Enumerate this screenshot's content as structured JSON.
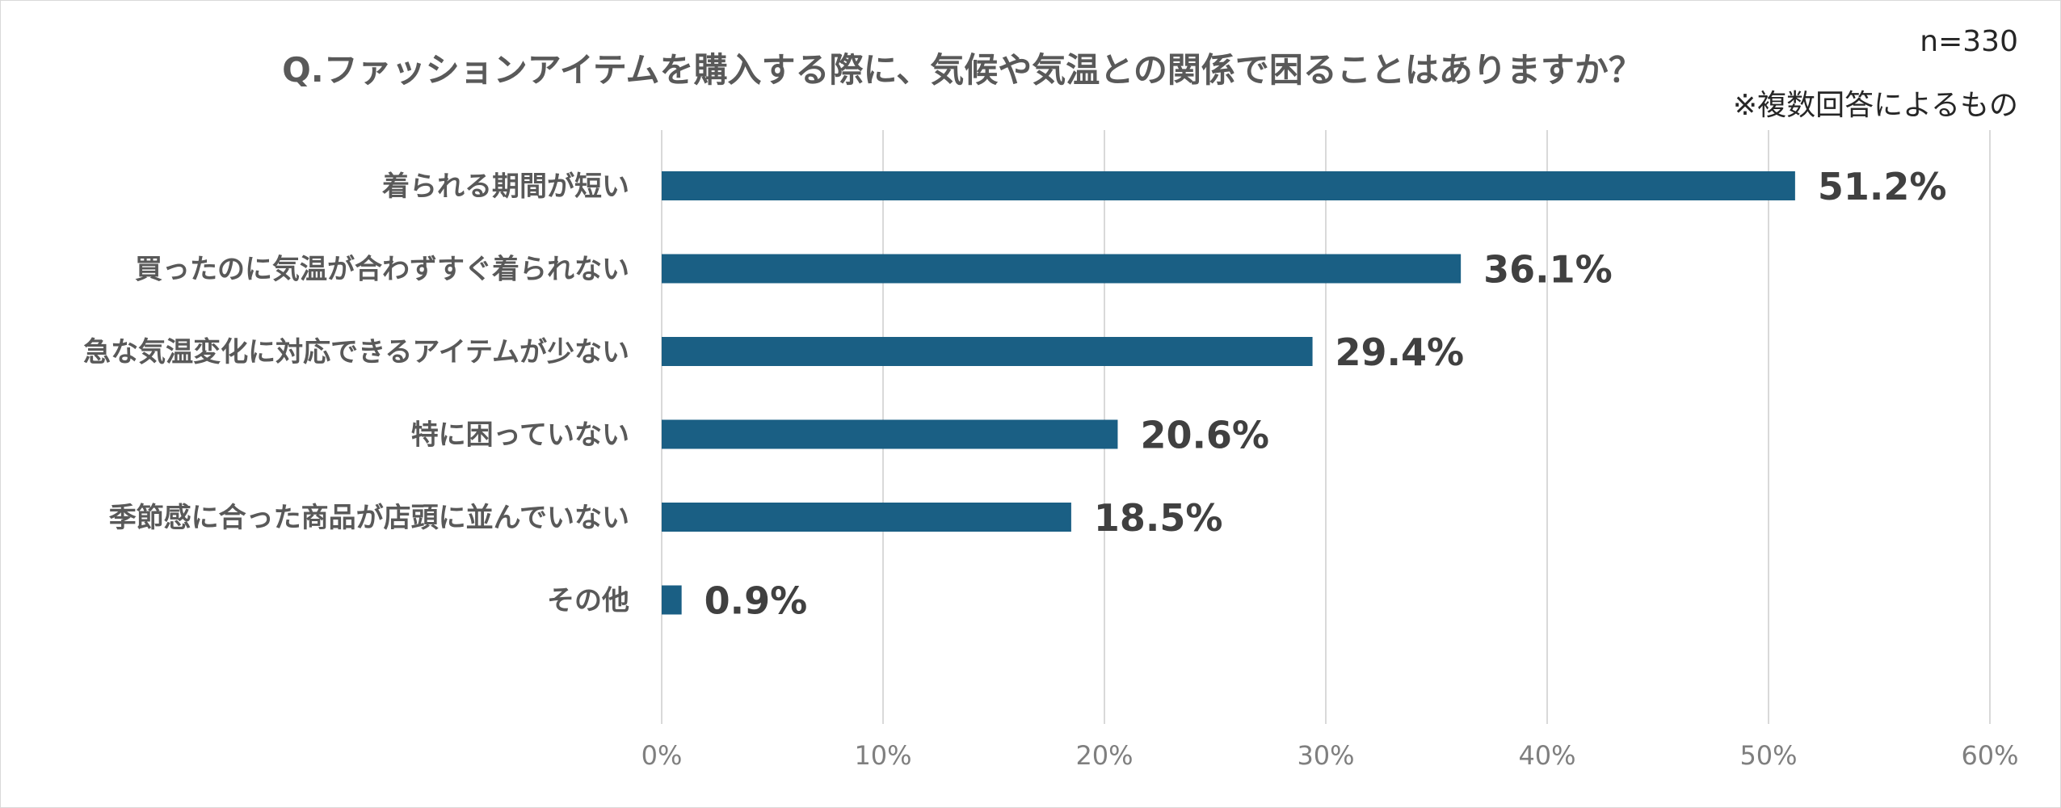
{
  "header": {
    "title": "Q.ファッションアイテムを購入する際に、気候や気温との関係で困ることはありますか？",
    "sample_size": "n=330",
    "note": "※複数回答によるもの"
  },
  "colors": {
    "bar": "#1a5f84",
    "gridline": "#d9d9d9",
    "category_text": "#595959",
    "value_text": "#404040",
    "tick_text": "#7f7f7f"
  },
  "chart_data": {
    "type": "bar",
    "orientation": "horizontal",
    "title": "Q.ファッションアイテムを購入する際に、気候や気温との関係で困ることはありますか？",
    "categories": [
      "着られる期間が短い",
      "買ったのに気温が合わずすぐ着られない",
      "急な気温変化に対応できるアイテムが少ない",
      "特に困っていない",
      "季節感に合った商品が店頭に並んでいない",
      "その他"
    ],
    "values": [
      51.2,
      36.1,
      29.4,
      20.6,
      18.5,
      0.9
    ],
    "value_labels": [
      "51.2%",
      "36.1%",
      "29.4%",
      "20.6%",
      "18.5%",
      "0.9%"
    ],
    "xlim": [
      0,
      60
    ],
    "x_ticks": [
      0,
      10,
      20,
      30,
      40,
      50,
      60
    ],
    "x_tick_labels": [
      "0%",
      "10%",
      "20%",
      "30%",
      "40%",
      "50%",
      "60%"
    ],
    "grid": "vertical",
    "legend": "none"
  }
}
